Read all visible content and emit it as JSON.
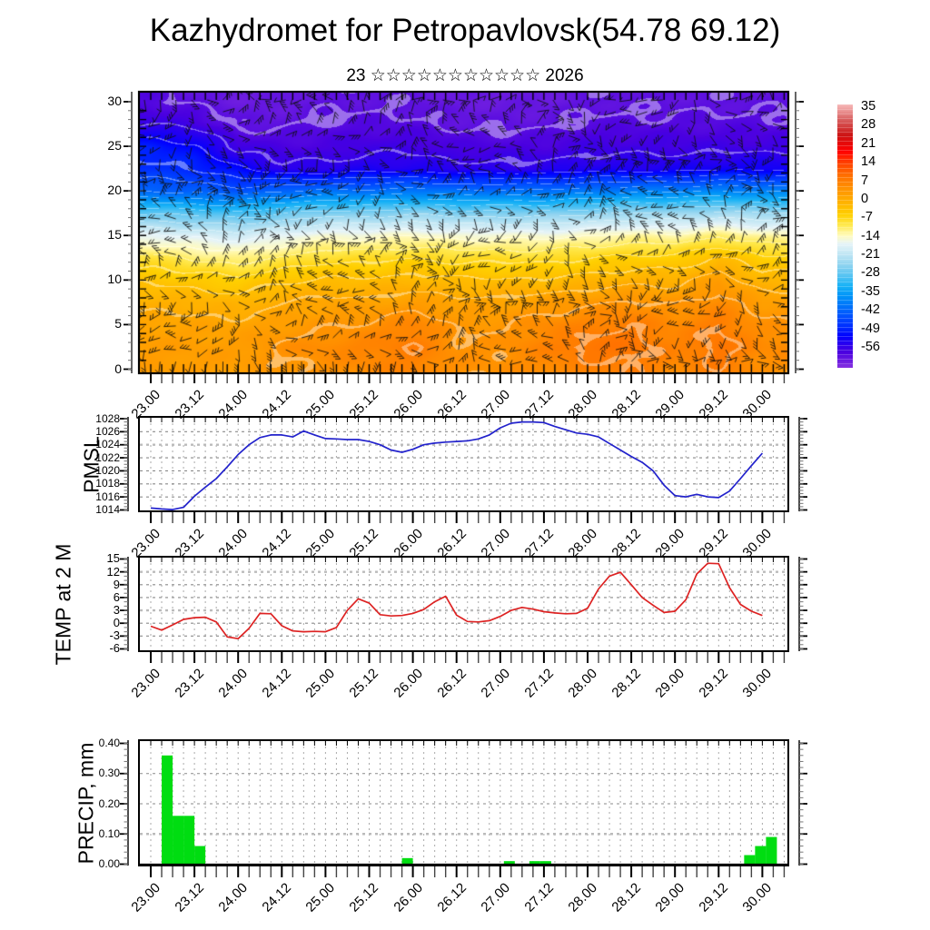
{
  "header": {
    "title": "Kazhydromet for Petropavlovsk(54.78 69.12)",
    "subtitle": "23 ☆☆☆☆☆☆☆☆☆☆☆ 2026"
  },
  "time_axis": {
    "tick_labels": [
      "23.00",
      "23.12",
      "24.00",
      "24.12",
      "25.00",
      "25.12",
      "26.00",
      "26.12",
      "27.00",
      "27.12",
      "28.00",
      "28.12",
      "29.00",
      "29.12",
      "30.00"
    ],
    "label_step_hours": 12,
    "minor_step_hours": 3,
    "start_hour": 0,
    "end_hour": 168
  },
  "colorbar": {
    "labels": [
      "35",
      "28",
      "21",
      "14",
      "7",
      "0",
      "-7",
      "-14",
      "-21",
      "-28",
      "-35",
      "-42",
      "-49",
      "-56"
    ]
  },
  "chart_data": [
    {
      "type": "heatmap",
      "name": "temperature-height-cross-section",
      "ylabel": "",
      "ytick_labels": [
        "30",
        "25",
        "20",
        "15",
        "10",
        "5",
        "0"
      ],
      "ylim": [
        0,
        30
      ],
      "x_step_hours": 12,
      "z_levels_desc": [
        30,
        27.5,
        25,
        22.5,
        20,
        17.5,
        15,
        12.5,
        10,
        7.5,
        5,
        2.5,
        0
      ],
      "values": [
        [
          -59,
          -60,
          -61,
          -61,
          -60,
          -60,
          -60,
          -61,
          -61,
          -61,
          -60,
          -60,
          -60,
          -60,
          -60
        ],
        [
          -56,
          -57,
          -60,
          -60,
          -59,
          -59,
          -59,
          -60,
          -60,
          -60,
          -59,
          -59,
          -59,
          -59,
          -59
        ],
        [
          -50,
          -52,
          -57,
          -58,
          -58,
          -57,
          -57,
          -58,
          -58,
          -58,
          -57,
          -57,
          -57,
          -57,
          -57
        ],
        [
          -48,
          -49,
          -52,
          -55,
          -55,
          -54,
          -54,
          -55,
          -55,
          -55,
          -54,
          -54,
          -54,
          -53,
          -53
        ],
        [
          -42,
          -43,
          -44,
          -42,
          -41,
          -41,
          -40,
          -41,
          -41,
          -41,
          -40,
          -39,
          -39,
          -38,
          -39
        ],
        [
          -28,
          -29,
          -30,
          -28,
          -26,
          -26,
          -25,
          -26,
          -26,
          -26,
          -25,
          -24,
          -24,
          -23,
          -24
        ],
        [
          -17,
          -18,
          -19,
          -17,
          -15,
          -15,
          -14,
          -15,
          -15,
          -15,
          -14,
          -13,
          -13,
          -11,
          -13
        ],
        [
          -9,
          -11,
          -12,
          -10,
          -8,
          -8,
          -7,
          -8,
          -8,
          -8,
          -7,
          -6,
          -6,
          -3,
          -6
        ],
        [
          -4,
          -5,
          -6,
          -4,
          -3,
          -3,
          -2,
          -3,
          -3,
          -3,
          -2,
          -1,
          -1,
          2,
          -2
        ],
        [
          -1,
          -1,
          -2,
          0,
          1,
          1,
          2,
          1,
          1,
          2,
          3,
          4,
          3,
          5,
          2
        ],
        [
          1,
          1,
          1,
          2,
          3,
          4,
          6,
          3,
          3,
          5,
          6,
          7,
          5,
          7,
          4
        ],
        [
          2,
          2,
          2,
          4,
          5,
          6,
          7,
          4,
          4,
          6,
          8,
          8,
          6,
          8,
          5
        ],
        [
          2,
          2,
          2,
          3,
          4,
          5,
          6,
          4,
          4,
          5,
          6,
          7,
          5,
          7,
          4
        ]
      ],
      "colormap": [
        [
          -64,
          "#8732e0"
        ],
        [
          -58,
          "#4a00e0"
        ],
        [
          -55,
          "#2a00ef"
        ],
        [
          -52,
          "#0000fe"
        ],
        [
          -49,
          "#0028ff"
        ],
        [
          -45,
          "#004cff"
        ],
        [
          -41,
          "#0070fa"
        ],
        [
          -37,
          "#0092f8"
        ],
        [
          -33,
          "#18b2f6"
        ],
        [
          -29,
          "#58c4f2"
        ],
        [
          -25,
          "#90d4f0"
        ],
        [
          -21,
          "#c0e6f4"
        ],
        [
          -17,
          "#e6f4f8"
        ],
        [
          -14,
          "#fffbc0"
        ],
        [
          -10,
          "#ffe94e"
        ],
        [
          -6,
          "#ffcf00"
        ],
        [
          -1,
          "#ffb000"
        ],
        [
          4,
          "#ff9100"
        ],
        [
          9,
          "#ff6e00"
        ],
        [
          14,
          "#ff3c00"
        ],
        [
          18,
          "#ff0000"
        ],
        [
          24,
          "#cc1414"
        ],
        [
          30,
          "#d86060"
        ],
        [
          35,
          "#f4b0b0"
        ]
      ],
      "wind_barbs": {
        "spacing_x": 17.3,
        "spacing_y": 13.1,
        "length": 13,
        "color": "rgba(15,15,15,0.88)"
      }
    },
    {
      "type": "line",
      "name": "pmsl",
      "ylabel": "PMSL",
      "color": "#2222cc",
      "ylim": [
        1014,
        1028
      ],
      "ytick_labels": [
        "1028",
        "1026",
        "1024",
        "1022",
        "1020",
        "1018",
        "1016",
        "1014"
      ],
      "step_hours": 3,
      "values": [
        1014.3,
        1014.15,
        1014.05,
        1014.4,
        1016.1,
        1017.5,
        1018.8,
        1020.6,
        1022.5,
        1024.0,
        1025.1,
        1025.5,
        1025.5,
        1025.2,
        1026.1,
        1025.5,
        1024.95,
        1024.9,
        1024.8,
        1024.8,
        1024.5,
        1024.0,
        1023.2,
        1022.85,
        1023.3,
        1024.0,
        1024.25,
        1024.4,
        1024.5,
        1024.6,
        1024.9,
        1025.5,
        1026.6,
        1027.3,
        1027.5,
        1027.5,
        1027.4,
        1026.8,
        1026.3,
        1025.8,
        1025.6,
        1025.2,
        1024.2,
        1023.2,
        1022.2,
        1021.3,
        1020.0,
        1017.8,
        1016.2,
        1016.0,
        1016.4,
        1016.0,
        1015.9,
        1016.9,
        1018.8,
        1020.8,
        1022.7
      ]
    },
    {
      "type": "line",
      "name": "temp-2m",
      "ylabel": "TEMP at 2 M",
      "color": "#dd2222",
      "ylim": [
        -6,
        15
      ],
      "ytick_labels": [
        "15",
        "12",
        "9",
        "6",
        "3",
        "0",
        "-3",
        "-6"
      ],
      "step_hours": 3,
      "values": [
        -0.7,
        -1.6,
        -0.4,
        0.9,
        1.3,
        1.4,
        0.3,
        -3.2,
        -3.6,
        -1.2,
        2.3,
        2.2,
        -0.6,
        -1.8,
        -2.0,
        -1.9,
        -2.0,
        -1.0,
        3.0,
        5.7,
        4.7,
        2.0,
        1.7,
        1.8,
        2.3,
        3.2,
        5.0,
        6.3,
        1.9,
        0.4,
        0.3,
        0.6,
        1.6,
        3.0,
        3.7,
        3.3,
        2.7,
        2.4,
        2.2,
        2.3,
        3.5,
        8.0,
        11.0,
        11.9,
        9.0,
        6.0,
        4.2,
        2.5,
        2.8,
        5.5,
        11.5,
        14.0,
        13.9,
        8.3,
        4.4,
        2.8,
        1.8
      ]
    },
    {
      "type": "bar",
      "name": "precip",
      "ylabel": "PRECIP, mm",
      "color": "#00dd11",
      "ylim": [
        0,
        0.4
      ],
      "ytick_labels": [
        "0.40",
        "0.30",
        "0.20",
        "0.10",
        "0.00"
      ],
      "bar_width_hours": 3,
      "bars": [
        {
          "t": 3,
          "v": 0.36
        },
        {
          "t": 6,
          "v": 0.16
        },
        {
          "t": 9,
          "v": 0.16
        },
        {
          "t": 12,
          "v": 0.06
        },
        {
          "t": 69,
          "v": 0.02
        },
        {
          "t": 97,
          "v": 0.01
        },
        {
          "t": 104,
          "v": 0.01
        },
        {
          "t": 107,
          "v": 0.01
        },
        {
          "t": 163,
          "v": 0.03
        },
        {
          "t": 166,
          "v": 0.06
        },
        {
          "t": 169,
          "v": 0.09
        }
      ]
    }
  ]
}
